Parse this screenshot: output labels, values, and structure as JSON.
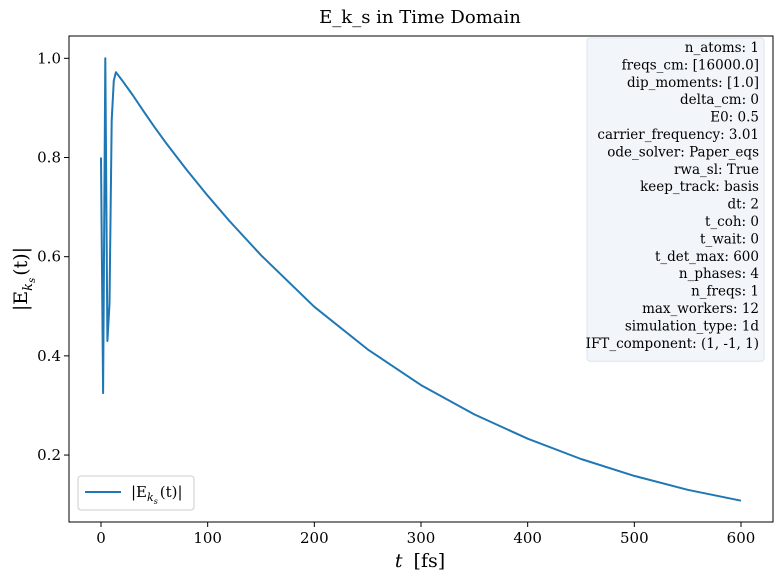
{
  "chart_data": {
    "type": "line",
    "title": "E_k_s in Time Domain",
    "xlabel_var": "t",
    "xlabel_unit": "[fs]",
    "ylabel_main": "|E",
    "ylabel_sub": "k",
    "ylabel_subsub": "s",
    "ylabel_tail": "(t)|",
    "xlim": [
      -30,
      630
    ],
    "ylim": [
      0.065,
      1.045
    ],
    "x_ticks": [
      0,
      100,
      200,
      300,
      400,
      500,
      600
    ],
    "y_ticks": [
      0.2,
      0.4,
      0.6,
      0.8,
      1.0
    ],
    "y_tick_labels": [
      "0.2",
      "0.4",
      "0.6",
      "0.8",
      "1.0"
    ],
    "grid": false,
    "line_color": "#1f77b4",
    "series": [
      {
        "name": "|E_k_s(t)|",
        "x": [
          0,
          2,
          4,
          6,
          8,
          10,
          12,
          14,
          20,
          30,
          40,
          50,
          60,
          80,
          100,
          120,
          150,
          200,
          250,
          300,
          350,
          400,
          450,
          500,
          550,
          600
        ],
        "y": [
          0.8,
          0.325,
          1.0,
          0.43,
          0.505,
          0.875,
          0.955,
          0.972,
          0.955,
          0.925,
          0.893,
          0.862,
          0.832,
          0.776,
          0.723,
          0.673,
          0.603,
          0.499,
          0.413,
          0.341,
          0.282,
          0.233,
          0.192,
          0.158,
          0.13,
          0.108
        ]
      }
    ],
    "legend": {
      "position": "lower-left",
      "main": "|E",
      "sub": "k",
      "subsub": "s",
      "tail": "(t)|"
    },
    "params_box": {
      "position": "top-right",
      "background": "#f2f6fa",
      "lines": [
        "n_atoms: 1",
        "freqs_cm: [16000.0]",
        "dip_moments: [1.0]",
        "delta_cm: 0",
        "E0: 0.5",
        "carrier_frequency: 3.01",
        "ode_solver: Paper_eqs",
        "rwa_sl: True",
        "keep_track: basis",
        "dt: 2",
        "t_coh: 0",
        "t_wait: 0",
        "t_det_max: 600",
        "n_phases: 4",
        "n_freqs: 1",
        "max_workers: 12",
        "simulation_type: 1d",
        "IFT_component: (1, -1, 1)"
      ]
    }
  }
}
